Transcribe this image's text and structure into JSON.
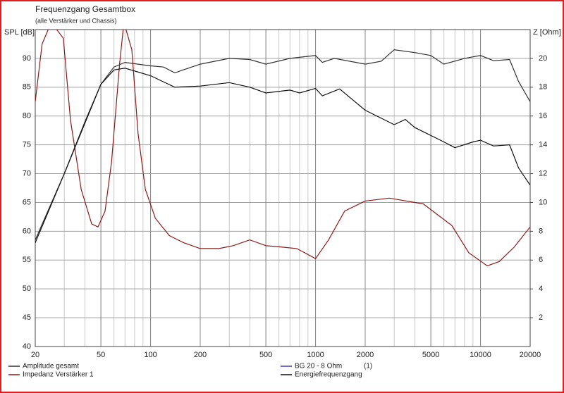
{
  "chart_data": {
    "type": "line",
    "title": "Frequenzgang Gesamtbox",
    "subtitle": "(alle Verstärker und Chassis)",
    "y_label": "SPL [dB]",
    "y2_label": "Z [Ohm]",
    "x_scale": "log",
    "grid": true,
    "xlim": [
      20,
      20000
    ],
    "xticks": [
      20,
      50,
      100,
      200,
      500,
      1000,
      2000,
      5000,
      10000,
      20000
    ],
    "ylim": [
      40,
      95
    ],
    "yticks": [
      40,
      45,
      50,
      55,
      60,
      65,
      70,
      75,
      80,
      85,
      90
    ],
    "y2lim": [
      0,
      22
    ],
    "y2ticks": [
      2,
      4,
      6,
      8,
      10,
      12,
      14,
      16,
      18,
      20
    ],
    "series": [
      {
        "name": "Amplitude gesamt",
        "color": "#303030",
        "x": [
          20,
          30,
          40,
          50,
          60,
          70,
          100,
          120,
          140,
          200,
          300,
          400,
          500,
          700,
          1000,
          1100,
          1300,
          2000,
          2500,
          3000,
          4000,
          5000,
          6000,
          8000,
          10000,
          12000,
          15000,
          17000,
          20000
        ],
        "values": [
          58.5,
          70,
          79,
          85.5,
          88.5,
          89.3,
          88.7,
          88.5,
          87.5,
          89,
          90,
          89.8,
          89,
          90,
          90.5,
          89.3,
          90,
          89,
          89.5,
          91.5,
          91,
          90.5,
          89,
          90,
          90.5,
          89.6,
          89.8,
          86,
          82.5
        ]
      },
      {
        "name": "Impedanz Verstärker 1",
        "color": "#8b1a1a",
        "axis": "y2",
        "x": [
          20,
          22,
          25,
          29.6,
          32.7,
          38,
          44,
          48,
          53,
          58,
          65,
          69,
          77,
          84,
          93,
          107,
          130,
          159,
          200,
          260,
          317,
          400,
          500,
          630,
          770,
          1000,
          1200,
          1500,
          2000,
          2800,
          4500,
          6700,
          8500,
          11000,
          13000,
          16000,
          20000
        ],
        "values": [
          17,
          21,
          22.5,
          21.4,
          15.7,
          10.9,
          8.5,
          8.3,
          9.4,
          12.8,
          19.7,
          22.5,
          20.6,
          14.8,
          10.9,
          8.9,
          7.7,
          7.2,
          6.8,
          6.8,
          7.0,
          7.4,
          7.0,
          6.9,
          6.8,
          6.1,
          7.4,
          9.4,
          10.1,
          10.3,
          9.9,
          8.4,
          6.5,
          5.6,
          5.9,
          6.9,
          8.3
        ]
      },
      {
        "name": "BG 20 - 8 Ohm",
        "note": "(1)",
        "color": "#3a3ab0",
        "x": [],
        "values": []
      },
      {
        "name": "Energiefrequenzgang",
        "color": "#101010",
        "x": [
          20,
          30,
          50,
          60,
          70,
          100,
          140,
          200,
          300,
          400,
          500,
          700,
          800,
          1000,
          1100,
          1400,
          2000,
          3000,
          3500,
          4000,
          6000,
          7000,
          9000,
          10000,
          12000,
          15000,
          17000,
          20000
        ],
        "values": [
          58,
          70,
          85.5,
          88,
          88.3,
          87,
          85,
          85.2,
          85.8,
          85,
          84,
          84.5,
          84,
          84.8,
          83.5,
          84.7,
          81,
          78.5,
          79.4,
          78,
          75.5,
          74.5,
          75.5,
          75.8,
          74.8,
          75,
          71,
          68
        ]
      }
    ]
  }
}
